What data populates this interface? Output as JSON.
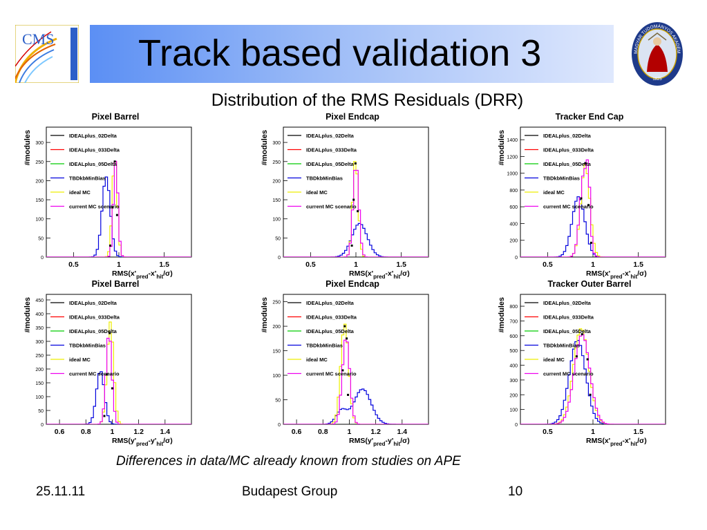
{
  "slide": {
    "title": "Track based validation 3",
    "subtitle": "Distribution of the RMS Residuals (DRR)",
    "footnote": "Differences in  data/MC  already known from studies on APE",
    "footer": {
      "date": "25.11.11",
      "group": "Budapest Group",
      "page": "10"
    },
    "logos": {
      "cms_text": "CMS",
      "seal_text": "MAGYAR TUDOMÁNYOS AKADÉMIA",
      "seal_year": "1825"
    }
  },
  "legend_entries": [
    {
      "name": "IDEALplus_02Delta",
      "color": "#000000"
    },
    {
      "name": "IDEALplus_033Delta",
      "color": "#ff0000"
    },
    {
      "name": "IDEALplus_05Delta",
      "color": "#00cc00"
    },
    {
      "name": "TBDkbMinBias",
      "color": "#0000dd"
    },
    {
      "name": "ideal MC",
      "color": "#eeee00"
    },
    {
      "name": "current MC scenario",
      "color": "#ee00ee"
    }
  ],
  "chart_data": [
    {
      "type": "histogram",
      "title": "Pixel Barrel",
      "ylabel": "#modules",
      "xlabel": "RMS(x'pred-x'hit/σ)",
      "xlabel_parts": {
        "main": "RMS(x'",
        "sub1": "pred",
        "mid": "-x'",
        "sub2": "hit",
        "end": "/σ)"
      },
      "xlim": [
        0.2,
        1.8
      ],
      "ylim": [
        0,
        340
      ],
      "xticks": [
        0.5,
        1,
        1.5
      ],
      "xtick_labels": [
        "0.5",
        "1",
        "1.5"
      ],
      "yticks": [
        0,
        50,
        100,
        150,
        200,
        250,
        300
      ],
      "series": [
        {
          "color": "#0000dd",
          "peaks": [
            {
              "mu": 0.86,
              "sigma": 0.045,
              "amp": 210
            }
          ],
          "bin": 0.025
        },
        {
          "color": "#eeee00",
          "peaks": [
            {
              "mu": 0.955,
              "sigma": 0.028,
              "amp": 258
            }
          ],
          "bin": 0.025
        },
        {
          "color": "#ee00ee",
          "peaks": [
            {
              "mu": 0.965,
              "sigma": 0.025,
              "amp": 252
            }
          ],
          "bin": 0.025
        }
      ],
      "markers": [
        {
          "x": 0.955,
          "y": 250
        },
        {
          "x": 0.93,
          "y": 130
        },
        {
          "x": 0.98,
          "y": 110
        },
        {
          "x": 0.905,
          "y": 30
        }
      ]
    },
    {
      "type": "histogram",
      "title": "Pixel Endcap",
      "ylabel": "#modules",
      "xlabel": "RMS(x'pred-x'hit/σ)",
      "xlabel_parts": {
        "main": "RMS(x'",
        "sub1": "pred",
        "mid": "-x'",
        "sub2": "hit",
        "end": "/σ)"
      },
      "xlim": [
        0.2,
        1.8
      ],
      "ylim": [
        0,
        340
      ],
      "xticks": [
        0.5,
        1,
        1.5
      ],
      "xtick_labels": [
        "0.5",
        "1",
        "1.5"
      ],
      "yticks": [
        0,
        50,
        100,
        150,
        200,
        250,
        300
      ],
      "series": [
        {
          "color": "#0000dd",
          "peaks": [
            {
              "mu": 1.04,
              "sigma": 0.085,
              "amp": 88
            }
          ],
          "bin": 0.025
        },
        {
          "color": "#eeee00",
          "peaks": [
            {
              "mu": 0.995,
              "sigma": 0.03,
              "amp": 258
            }
          ],
          "bin": 0.025
        },
        {
          "color": "#ee00ee",
          "peaks": [
            {
              "mu": 1.0,
              "sigma": 0.032,
              "amp": 245
            }
          ],
          "bin": 0.025
        }
      ],
      "markers": [
        {
          "x": 0.995,
          "y": 245
        },
        {
          "x": 0.975,
          "y": 150
        },
        {
          "x": 1.02,
          "y": 120
        },
        {
          "x": 0.955,
          "y": 30
        }
      ]
    },
    {
      "type": "histogram",
      "title": "Tracker End Cap",
      "ylabel": "#modules",
      "xlabel": "RMS(x'pred-x'hit/σ)",
      "xlabel_parts": {
        "main": "RMS(x'",
        "sub1": "pred",
        "mid": "-x'",
        "sub2": "hit",
        "end": "/σ)"
      },
      "xlim": [
        0.2,
        1.8
      ],
      "ylim": [
        0,
        1550
      ],
      "xticks": [
        0.5,
        1,
        1.5
      ],
      "xtick_labels": [
        "0.5",
        "1",
        "1.5"
      ],
      "yticks": [
        0,
        200,
        400,
        600,
        800,
        1000,
        1200,
        1400
      ],
      "series": [
        {
          "color": "#0000dd",
          "peaks": [
            {
              "mu": 0.84,
              "sigma": 0.07,
              "amp": 720
            }
          ],
          "bin": 0.025
        },
        {
          "color": "#eeee00",
          "peaks": [
            {
              "mu": 0.915,
              "sigma": 0.05,
              "amp": 1100
            }
          ],
          "bin": 0.025
        },
        {
          "color": "#ee00ee",
          "peaks": [
            {
              "mu": 0.9,
              "sigma": 0.045,
              "amp": 1000
            },
            {
              "mu": 0.95,
              "sigma": 0.02,
              "amp": 550
            }
          ],
          "bin": 0.025
        }
      ],
      "markers": [
        {
          "x": 0.915,
          "y": 1120
        },
        {
          "x": 0.87,
          "y": 700
        },
        {
          "x": 0.95,
          "y": 620
        },
        {
          "x": 0.98,
          "y": 170
        }
      ]
    },
    {
      "type": "histogram",
      "title": "Pixel Barrel",
      "ylabel": "#modules",
      "xlabel": "RMS(y'pred-y'hit/σ)",
      "xlabel_parts": {
        "main": "RMS(y'",
        "sub1": "pred",
        "mid": "-y'",
        "sub2": "hit",
        "end": "/σ)"
      },
      "xlim": [
        0.5,
        1.6
      ],
      "ylim": [
        0,
        470
      ],
      "xticks": [
        0.6,
        0.8,
        1,
        1.2,
        1.4
      ],
      "xtick_labels": [
        "0.6",
        "0.8",
        "1",
        "1.2",
        "1.4"
      ],
      "yticks": [
        0,
        50,
        100,
        150,
        200,
        250,
        300,
        350,
        400,
        450
      ],
      "series": [
        {
          "color": "#0000dd",
          "peaks": [
            {
              "mu": 0.91,
              "sigma": 0.03,
              "amp": 195
            }
          ],
          "bin": 0.017
        },
        {
          "color": "#eeee00",
          "peaks": [
            {
              "mu": 0.985,
              "sigma": 0.025,
              "amp": 370
            }
          ],
          "bin": 0.017
        },
        {
          "color": "#ee00ee",
          "peaks": [
            {
              "mu": 0.975,
              "sigma": 0.022,
              "amp": 330
            }
          ],
          "bin": 0.017
        }
      ],
      "markers": [
        {
          "x": 0.98,
          "y": 330
        },
        {
          "x": 0.96,
          "y": 180
        },
        {
          "x": 1.0,
          "y": 130
        },
        {
          "x": 0.94,
          "y": 30
        }
      ]
    },
    {
      "type": "histogram",
      "title": "Pixel Endcap",
      "ylabel": "#modules",
      "xlabel": "RMS(y'pred-y'hit/σ)",
      "xlabel_parts": {
        "main": "RMS(y'",
        "sub1": "pred",
        "mid": "-y'",
        "sub2": "hit",
        "end": "/σ)"
      },
      "xlim": [
        0.5,
        1.6
      ],
      "ylim": [
        0,
        265
      ],
      "xticks": [
        0.6,
        0.8,
        1,
        1.2,
        1.4
      ],
      "xtick_labels": [
        "0.6",
        "0.8",
        "1",
        "1.2",
        "1.4"
      ],
      "yticks": [
        0,
        50,
        100,
        150,
        200,
        250
      ],
      "series": [
        {
          "color": "#0000dd",
          "peaks": [
            {
              "mu": 1.1,
              "sigma": 0.065,
              "amp": 72
            },
            {
              "mu": 0.94,
              "sigma": 0.04,
              "amp": 28
            }
          ],
          "bin": 0.017
        },
        {
          "color": "#eeee00",
          "peaks": [
            {
              "mu": 0.965,
              "sigma": 0.03,
              "amp": 205
            }
          ],
          "bin": 0.017
        },
        {
          "color": "#ee00ee",
          "peaks": [
            {
              "mu": 0.975,
              "sigma": 0.028,
              "amp": 178
            }
          ],
          "bin": 0.017
        }
      ],
      "markers": [
        {
          "x": 0.965,
          "y": 200
        },
        {
          "x": 0.98,
          "y": 175
        },
        {
          "x": 0.95,
          "y": 110
        },
        {
          "x": 0.99,
          "y": 60
        }
      ]
    },
    {
      "type": "histogram",
      "title": "Tracker Outer Barrel",
      "ylabel": "#modules",
      "xlabel": "RMS(x'pred-x'hit/σ)",
      "xlabel_parts": {
        "main": "RMS(x'",
        "sub1": "pred",
        "mid": "-x'",
        "sub2": "hit",
        "end": "/σ)"
      },
      "xlim": [
        0.2,
        1.8
      ],
      "ylim": [
        0,
        880
      ],
      "xticks": [
        0.5,
        1,
        1.5
      ],
      "xtick_labels": [
        "0.5",
        "1",
        "1.5"
      ],
      "yticks": [
        0,
        100,
        200,
        300,
        400,
        500,
        600,
        700,
        800
      ],
      "series": [
        {
          "color": "#0000dd",
          "peaks": [
            {
              "mu": 0.83,
              "sigma": 0.09,
              "amp": 570
            }
          ],
          "bin": 0.025
        },
        {
          "color": "#eeee00",
          "peaks": [
            {
              "mu": 0.87,
              "sigma": 0.085,
              "amp": 650
            }
          ],
          "bin": 0.025
        },
        {
          "color": "#ee00ee",
          "peaks": [
            {
              "mu": 0.88,
              "sigma": 0.085,
              "amp": 610
            }
          ],
          "bin": 0.025
        }
      ],
      "markers": [
        {
          "x": 0.88,
          "y": 610
        },
        {
          "x": 0.82,
          "y": 460
        },
        {
          "x": 0.94,
          "y": 440
        },
        {
          "x": 0.97,
          "y": 200
        }
      ]
    }
  ]
}
